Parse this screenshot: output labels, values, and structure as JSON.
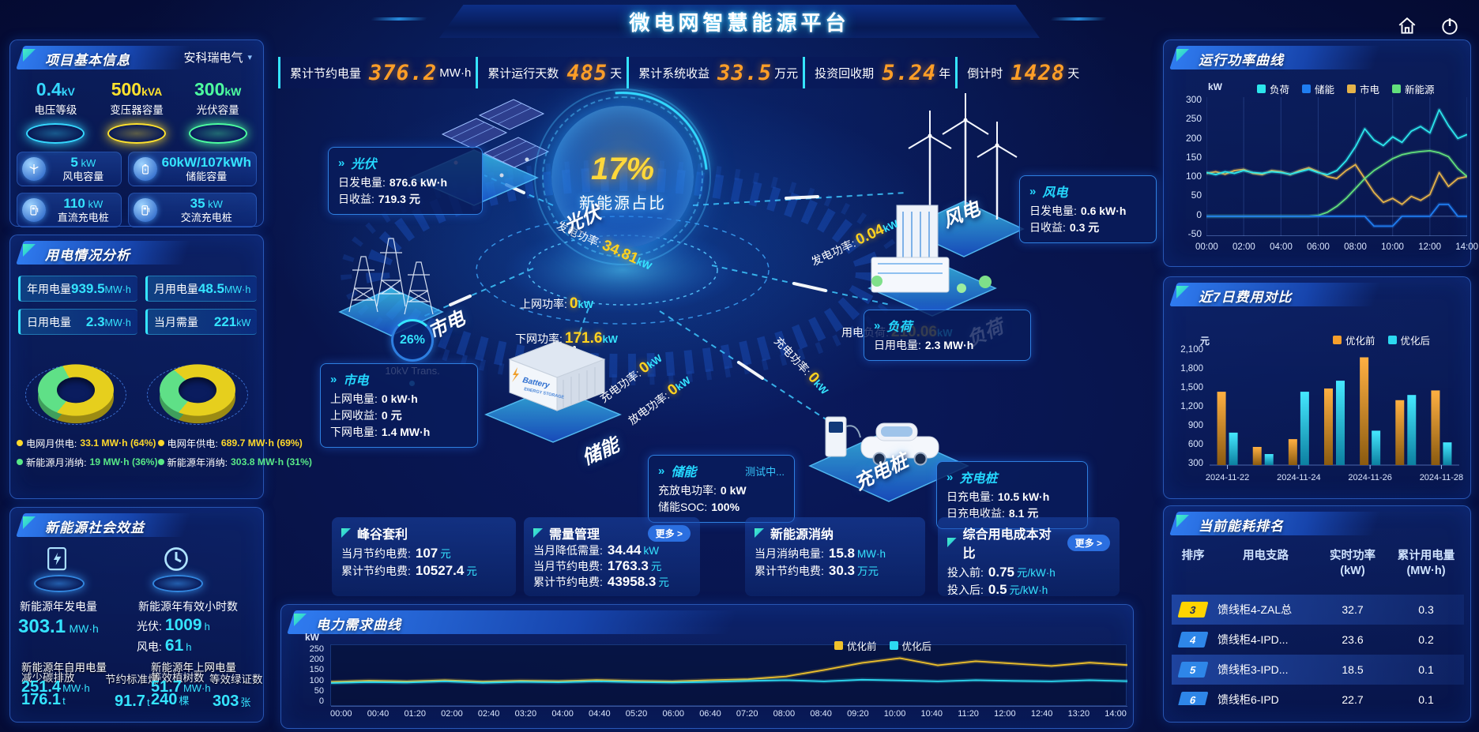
{
  "title": "微电网智慧能源平台",
  "stats_bar": [
    {
      "label": "累计节约电量",
      "value": "376.2",
      "unit": "MW·h"
    },
    {
      "label": "累计运行天数",
      "value": "485",
      "unit": "天"
    },
    {
      "label": "累计系统收益",
      "value": "33.5",
      "unit": "万元"
    },
    {
      "label": "投资回收期",
      "value": "5.24",
      "unit": "年"
    },
    {
      "label": "倒计时",
      "value": "1428",
      "unit": "天"
    }
  ],
  "project": {
    "title": "项目基本信息",
    "company": "安科瑞电气",
    "pedestals": [
      {
        "value": "0.4",
        "unit": "kV",
        "label": "电压等级",
        "color": "#35d8ff"
      },
      {
        "value": "500",
        "unit": "kVA",
        "label": "变压器容量",
        "color": "#ffe22e"
      },
      {
        "value": "300",
        "unit": "kW",
        "label": "光伏容量",
        "color": "#4dffa0"
      }
    ],
    "cards": [
      {
        "value": "5",
        "unit": "kW",
        "label": "风电容量",
        "icon": "wind-icon"
      },
      {
        "value": "60kW/107kWh",
        "unit": "",
        "label": "储能容量",
        "icon": "battery-icon"
      },
      {
        "value": "110",
        "unit": "kW",
        "label": "直流充电桩",
        "icon": "dc-charger-icon"
      },
      {
        "value": "35",
        "unit": "kW",
        "label": "交流充电桩",
        "icon": "ac-charger-icon"
      }
    ]
  },
  "usage": {
    "title": "用电情况分析",
    "stats": [
      {
        "label": "年用电量",
        "value": "939.5",
        "unit": "MW·h"
      },
      {
        "label": "月用电量",
        "value": "48.5",
        "unit": "MW·h"
      },
      {
        "label": "日用电量",
        "value": "2.3",
        "unit": "MW·h"
      },
      {
        "label": "当月需量",
        "value": "221",
        "unit": "kW"
      }
    ],
    "donuts": [
      {
        "green_pct": 36,
        "items": [
          {
            "label": "电网月供电:",
            "value": "33.1 MW·h (64%)",
            "color": "#ffd92b"
          },
          {
            "label": "新能源月消纳:",
            "value": "19 MW·h (36%)",
            "color": "#58e887"
          }
        ]
      },
      {
        "green_pct": 31,
        "items": [
          {
            "label": "电网年供电:",
            "value": "689.7 MW·h (69%)",
            "color": "#ffd92b"
          },
          {
            "label": "新能源年消纳:",
            "value": "303.8 MW·h (31%)",
            "color": "#58e887"
          }
        ]
      }
    ]
  },
  "benefit": {
    "title": "新能源社会效益",
    "gen": {
      "label": "新能源年发电量",
      "value": "303.1",
      "unit": "MW·h"
    },
    "hours": {
      "label": "新能源年有效小时数",
      "lines": [
        {
          "k": "光伏:",
          "v": "1009",
          "u": "h"
        },
        {
          "k": "风电:",
          "v": "61",
          "u": "h"
        }
      ]
    },
    "self": {
      "label": "新能源年自用电量",
      "value": "251.4",
      "unit": "MW·h"
    },
    "export": {
      "label": "新能源年上网电量",
      "value": "51.7",
      "unit": "MW·h"
    },
    "co2": {
      "label": "减少碳排放",
      "value": "176.1",
      "unit": "t"
    },
    "coal": {
      "label": "节约标准煤",
      "value": "91.7",
      "unit": "t"
    },
    "trees": {
      "label": "等效植树数",
      "value": "240",
      "unit": "棵"
    },
    "certs": {
      "label": "等效绿证数",
      "value": "303",
      "unit": "张"
    }
  },
  "center": {
    "percent": "17%",
    "percent_label": "新能源占比",
    "transformer": {
      "percent": "26%",
      "label": "10kV Trans."
    },
    "battery_text": {
      "line1": "Battery",
      "line2": "ENERGY STORAGE"
    },
    "nodes": {
      "pv": "光伏",
      "wind": "风电",
      "grid": "市电",
      "load": "负荷",
      "storage": "储能",
      "charger": "充电桩"
    },
    "boxes": {
      "pv": {
        "title": "光伏",
        "rows": [
          {
            "k": "日发电量:",
            "v": "876.6 kW·h"
          },
          {
            "k": "日收益:",
            "v": "719.3 元"
          }
        ]
      },
      "wind": {
        "title": "风电",
        "rows": [
          {
            "k": "日发电量:",
            "v": "0.6 kW·h"
          },
          {
            "k": "日收益:",
            "v": "0.3 元"
          }
        ]
      },
      "grid": {
        "title": "市电",
        "rows": [
          {
            "k": "上网电量:",
            "v": "0 kW·h"
          },
          {
            "k": "上网收益:",
            "v": "0 元"
          },
          {
            "k": "下网电量:",
            "v": "1.4 MW·h"
          }
        ]
      },
      "load": {
        "title": "负荷",
        "rows": [
          {
            "k": "日用电量:",
            "v": "2.3 MW·h"
          }
        ]
      },
      "storage": {
        "title": "储能",
        "status": "测试中...",
        "rows": [
          {
            "k": "充放电功率:",
            "v": "0 kW"
          },
          {
            "k": "储能SOC:",
            "v": "100%"
          }
        ]
      },
      "charger": {
        "title": "充电桩",
        "rows": [
          {
            "k": "日充电量:",
            "v": "10.5 kW·h"
          },
          {
            "k": "日充电收益:",
            "v": "8.1 元"
          }
        ]
      }
    },
    "flows": [
      {
        "label": "发电功率:",
        "value": "34.81",
        "unit": "kW"
      },
      {
        "label": "上网功率:",
        "value": "0",
        "unit": "kW"
      },
      {
        "label": "下网功率:",
        "value": "171.6",
        "unit": "kW"
      },
      {
        "label": "发电功率:",
        "value": "0.04",
        "unit": "kW"
      },
      {
        "label": "用电负荷:",
        "value": "210.06",
        "unit": "kW"
      },
      {
        "label": "充电功率:",
        "value": "0",
        "unit": "kW"
      },
      {
        "label": "放电功率:",
        "value": "0",
        "unit": "kW"
      },
      {
        "label": "充电功率:",
        "value": "0",
        "unit": "kW"
      }
    ]
  },
  "cards": [
    {
      "title": "峰谷套利",
      "more": null,
      "rows": [
        {
          "k": "当月节约电费:",
          "v": "107",
          "u": "元"
        },
        {
          "k": "累计节约电费:",
          "v": "10527.4",
          "u": "元"
        }
      ]
    },
    {
      "title": "需量管理",
      "more": "更多",
      "rows": [
        {
          "k": "当月降低需量:",
          "v": "34.44",
          "u": "kW"
        },
        {
          "k": "当月节约电费:",
          "v": "1763.3",
          "u": "元"
        },
        {
          "k": "累计节约电费:",
          "v": "43958.3",
          "u": "元"
        }
      ]
    },
    {
      "title": "新能源消纳",
      "more": null,
      "rows": [
        {
          "k": "当月消纳电量:",
          "v": "15.8",
          "u": "MW·h"
        },
        {
          "k": "累计节约电费:",
          "v": "30.3",
          "u": "万元"
        }
      ]
    },
    {
      "title": "综合用电成本对比",
      "more": "更多",
      "rows": [
        {
          "k": "投入前:",
          "v": "0.75",
          "u": "元/kW·h"
        },
        {
          "k": "投入后:",
          "v": "0.5",
          "u": "元/kW·h"
        }
      ]
    }
  ],
  "demand_chart": {
    "type": "line",
    "title": "电力需求曲线",
    "ylabel": "kW",
    "ylim": [
      0,
      260
    ],
    "y_ticks": [
      250,
      200,
      150,
      100,
      50,
      0
    ],
    "x_ticks": [
      "00:00",
      "00:40",
      "01:20",
      "02:00",
      "02:40",
      "03:20",
      "04:00",
      "04:40",
      "05:20",
      "06:00",
      "06:40",
      "07:20",
      "08:00",
      "08:40",
      "09:20",
      "10:00",
      "10:40",
      "11:20",
      "12:00",
      "12:40",
      "13:20",
      "14:00"
    ],
    "series": [
      {
        "name": "优化前",
        "color": "#f0c22c",
        "values": [
          105,
          110,
          107,
          112,
          106,
          110,
          108,
          113,
          109,
          107,
          112,
          116,
          128,
          155,
          185,
          205,
          175,
          192,
          182,
          172,
          186,
          176
        ]
      },
      {
        "name": "优化后",
        "color": "#2cd9f0",
        "values": [
          100,
          104,
          102,
          107,
          101,
          105,
          103,
          107,
          104,
          102,
          105,
          109,
          112,
          107,
          114,
          111,
          107,
          112,
          109,
          107,
          112,
          108
        ]
      }
    ]
  },
  "power_curve": {
    "type": "line",
    "title": "运行功率曲线",
    "ylabel": "kW",
    "ylim": [
      -50,
      300
    ],
    "y_ticks": [
      300,
      250,
      200,
      150,
      100,
      50,
      0,
      -50
    ],
    "x_ticks": [
      "00:00",
      "02:00",
      "04:00",
      "06:00",
      "08:00",
      "10:00",
      "12:00",
      "14:00"
    ],
    "series": [
      {
        "name": "负荷",
        "color": "#2ce6ec",
        "values": [
          110,
          105,
          112,
          108,
          115,
          110,
          108,
          112,
          110,
          106,
          112,
          118,
          110,
          105,
          115,
          140,
          175,
          220,
          192,
          178,
          200,
          186,
          214,
          226,
          210,
          268,
          228,
          196,
          206
        ]
      },
      {
        "name": "储能",
        "color": "#1f7df0",
        "values": [
          0,
          0,
          0,
          0,
          0,
          0,
          0,
          0,
          0,
          0,
          0,
          0,
          0,
          0,
          0,
          0,
          0,
          0,
          -25,
          -25,
          -25,
          0,
          0,
          0,
          0,
          30,
          30,
          0,
          0
        ]
      },
      {
        "name": "市电",
        "color": "#e5b34a",
        "values": [
          108,
          112,
          106,
          115,
          118,
          108,
          105,
          115,
          112,
          105,
          115,
          122,
          112,
          100,
          95,
          115,
          130,
          95,
          60,
          35,
          45,
          30,
          50,
          40,
          55,
          110,
          75,
          95,
          100
        ]
      },
      {
        "name": "新能源",
        "color": "#62e07c",
        "values": [
          0,
          0,
          0,
          0,
          0,
          0,
          0,
          0,
          0,
          0,
          0,
          0,
          2,
          10,
          25,
          45,
          70,
          95,
          115,
          130,
          145,
          155,
          160,
          163,
          165,
          160,
          150,
          120,
          100
        ]
      }
    ]
  },
  "cost_compare": {
    "type": "bar",
    "title": "近7日费用对比",
    "ylabel": "元",
    "ylim": [
      300,
      2100
    ],
    "y_ticks": [
      "2,100",
      "1,800",
      "1,500",
      "1,200",
      "900",
      "600",
      "300"
    ],
    "x_ticks": [
      "2024-11-22",
      "2024-11-24",
      "2024-11-26",
      "2024-11-28"
    ],
    "categories": [
      "2024-11-22",
      "2024-11-23",
      "2024-11-24",
      "2024-11-25",
      "2024-11-26",
      "2024-11-27",
      "2024-11-28"
    ],
    "series": [
      {
        "name": "优化前",
        "color": "#f59f2c",
        "values": [
          1430,
          580,
          700,
          1480,
          1960,
          1300,
          1450
        ]
      },
      {
        "name": "优化后",
        "color": "#2cd9f0",
        "values": [
          800,
          470,
          1430,
          1600,
          830,
          1380,
          650
        ]
      }
    ]
  },
  "ranking": {
    "title": "当前能耗排名",
    "columns": [
      {
        "l1": "排序",
        "l2": ""
      },
      {
        "l1": "用电支路",
        "l2": ""
      },
      {
        "l1": "实时功率",
        "l2": "(kW)"
      },
      {
        "l1": "累计用电量",
        "l2": "(MW·h)"
      }
    ],
    "rows": [
      {
        "rank": "3",
        "branch": "馈线柜4-ZAL总",
        "power": "32.7",
        "energy": "0.3",
        "top": true,
        "hl": true
      },
      {
        "rank": "4",
        "branch": "馈线柜4-IPD...",
        "power": "23.6",
        "energy": "0.2",
        "top": false,
        "hl": false
      },
      {
        "rank": "5",
        "branch": "馈线柜3-IPD...",
        "power": "18.5",
        "energy": "0.1",
        "top": false,
        "hl": true
      },
      {
        "rank": "6",
        "branch": "馈线柜6-IPD",
        "power": "22.7",
        "energy": "0.1",
        "top": false,
        "hl": false
      }
    ]
  }
}
